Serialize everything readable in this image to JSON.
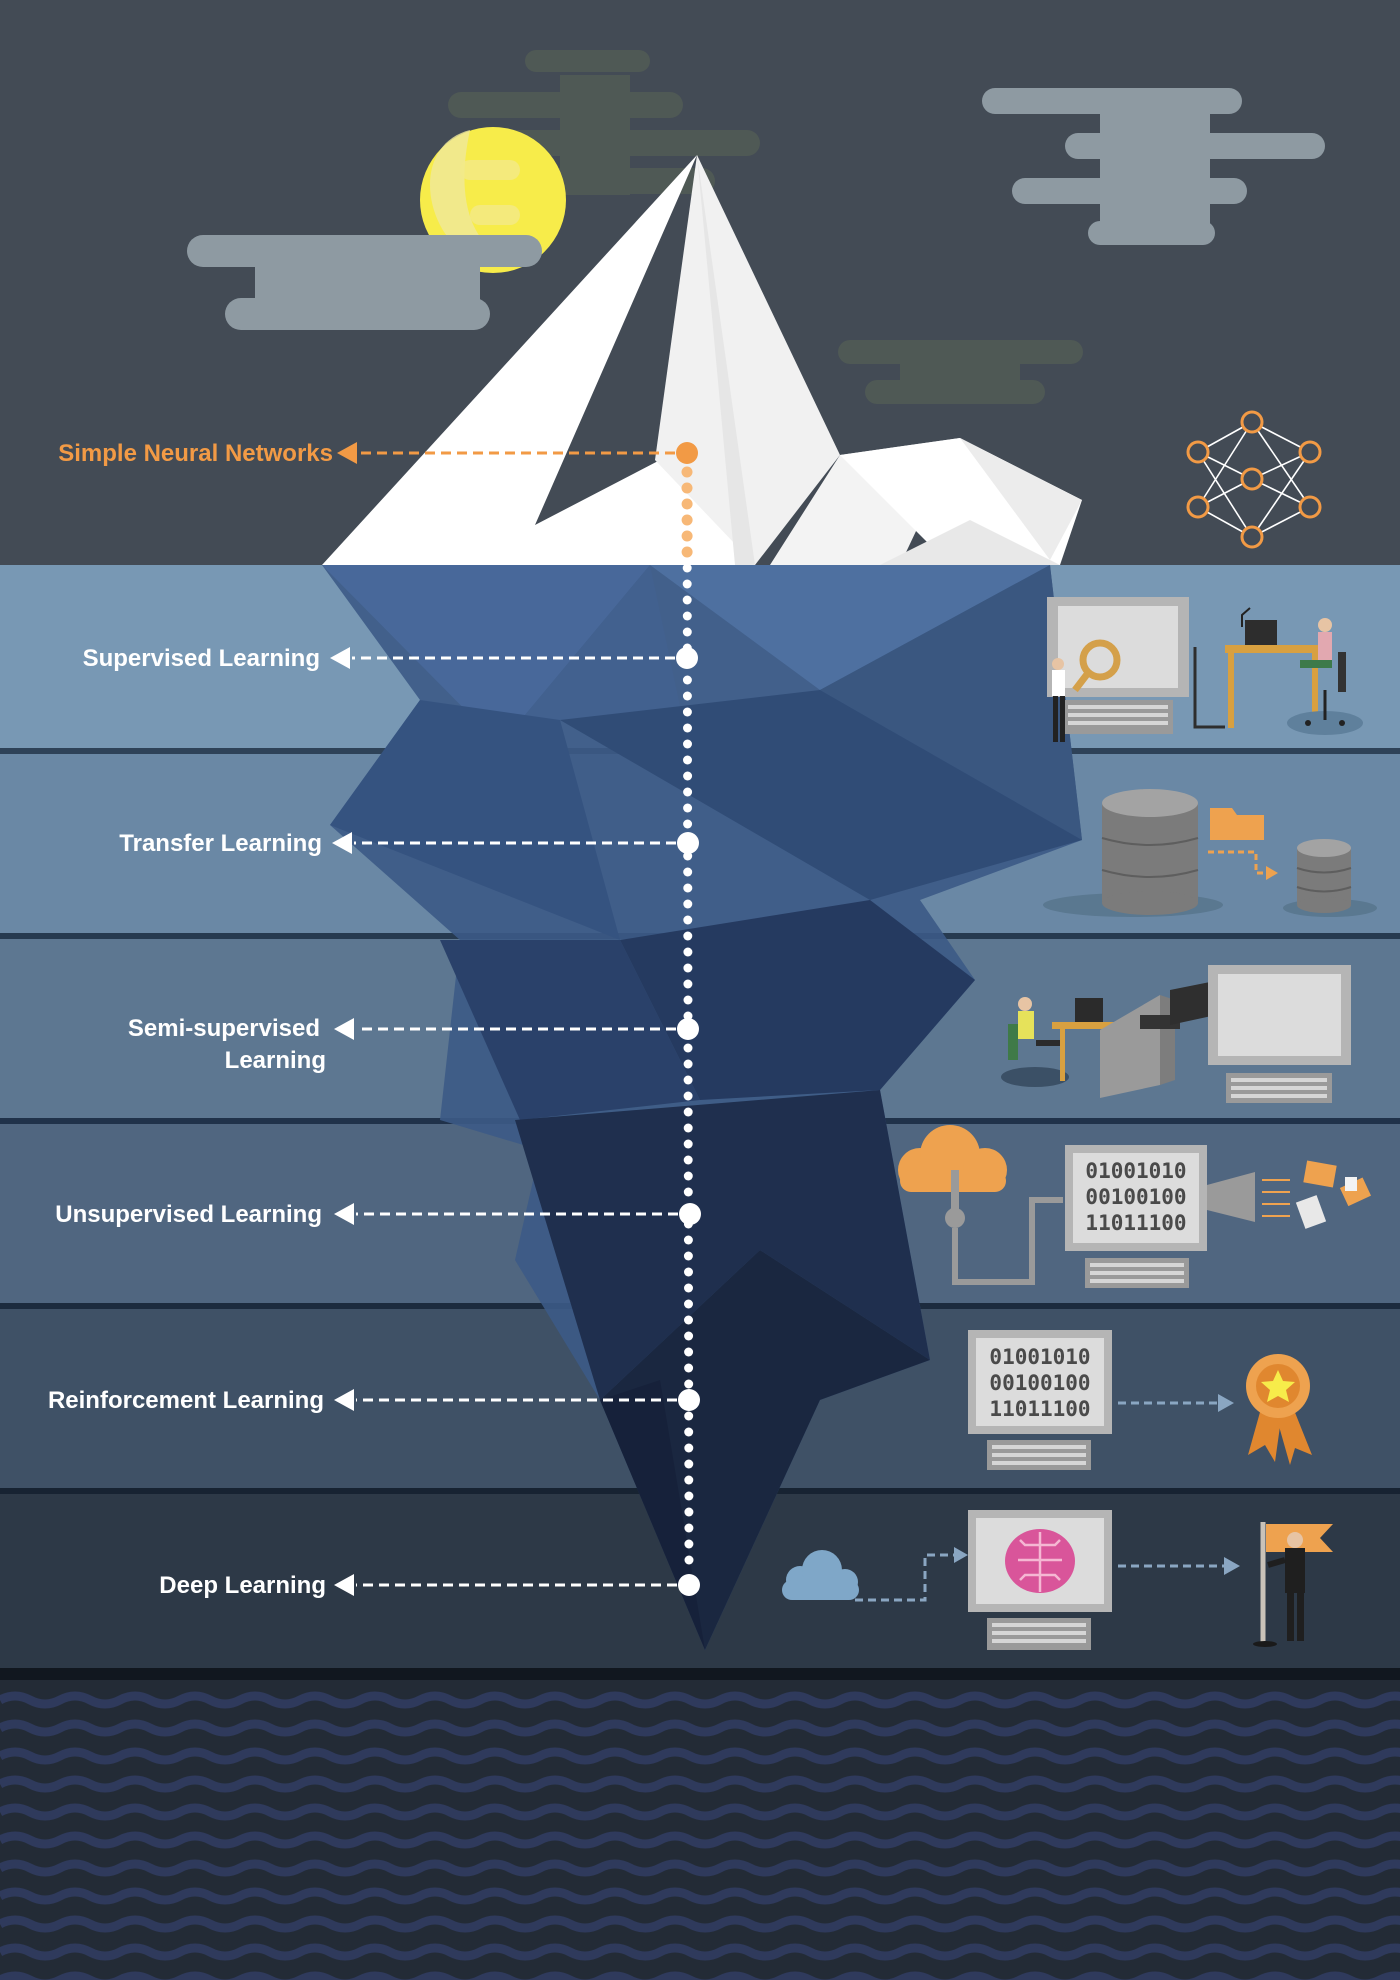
{
  "iceberg": {
    "levels": [
      {
        "label": "Simple Neural Networks",
        "color": "#f29a45",
        "icon": "neural-network-icon"
      },
      {
        "label": "Supervised Learning",
        "color": "#ffffff",
        "icon": "supervised-workstation-icon"
      },
      {
        "label": "Transfer Learning",
        "color": "#ffffff",
        "icon": "database-transfer-icon"
      },
      {
        "label_line1": "Semi-supervised",
        "label_line2": "Learning",
        "color": "#ffffff",
        "icon": "camera-monitor-icon"
      },
      {
        "label": "Unsupervised Learning",
        "color": "#ffffff",
        "icon": "cloud-data-computer-icon"
      },
      {
        "label": "Reinforcement Learning",
        "color": "#ffffff",
        "icon": "computer-award-icon"
      },
      {
        "label": "Deep Learning",
        "color": "#ffffff",
        "icon": "brain-computer-flag-icon"
      }
    ]
  },
  "binary_code": [
    "01001010",
    "00100100",
    "11011100"
  ],
  "colors": {
    "sky": "#434b55",
    "accent": "#f29a45",
    "moon": "#f7ec4a",
    "ocean": "#232b36"
  }
}
